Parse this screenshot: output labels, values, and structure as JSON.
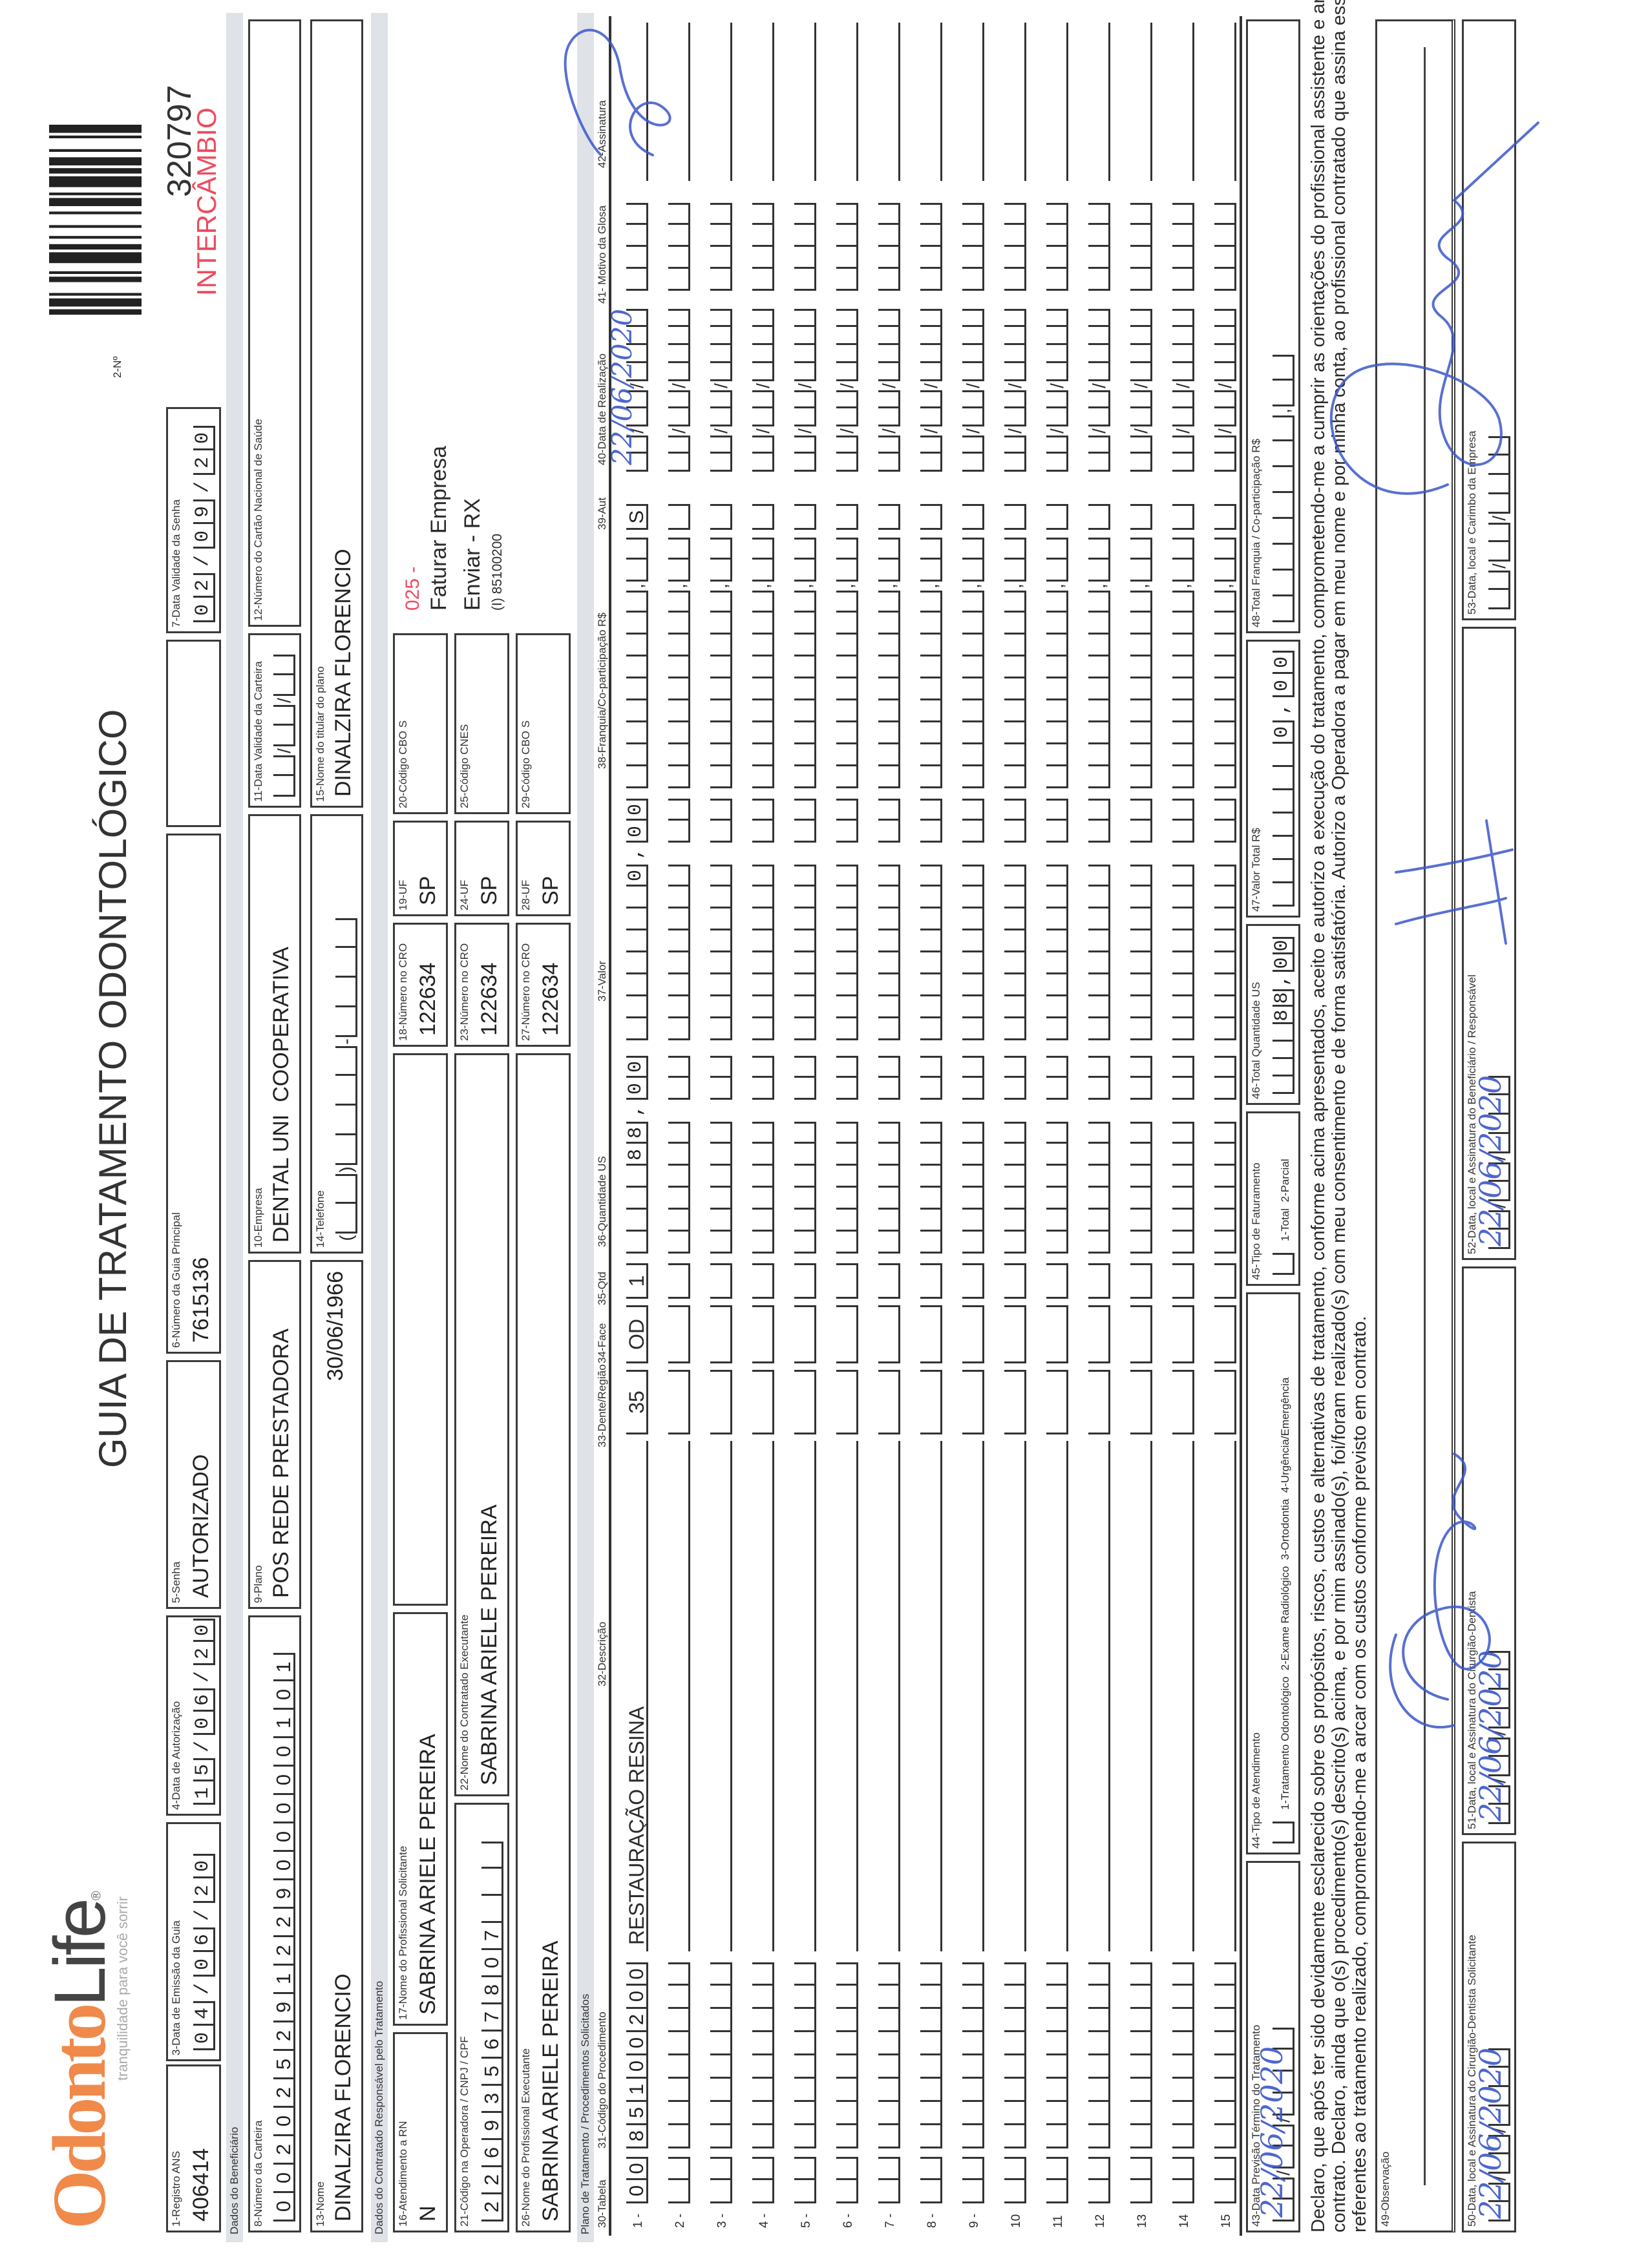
{
  "header": {
    "logo_text_1": "Odonto",
    "logo_text_2": "Life",
    "logo_tagline": "tranquilidade para você sorrir",
    "title": "GUIA DE TRATAMENTO ODONTOLÓGICO",
    "numero_label": "2-Nº",
    "numero": "320797",
    "intercambio": "INTERCÂMBIO"
  },
  "colors": {
    "logo_orange": "#f08a4b",
    "intercambio_red": "#ee4b5d",
    "ink_blue": "#3b57c9",
    "band_grey": "#dfe3e8"
  },
  "sections": {
    "beneficiario": "Dados do Beneficiário",
    "contratado": "Dados do Contratado Responsável pelo Tratamento",
    "plano": "Plano de Tratamento / Procedimentos Solicitados"
  },
  "fields": {
    "f1": {
      "label": "1-Registro ANS",
      "value": "406414"
    },
    "f3": {
      "label": "3-Data de Emissão da Guia",
      "value": "04/06/20"
    },
    "f4": {
      "label": "4-Data de Autorização",
      "value": "15/06/20"
    },
    "f5": {
      "label": "5-Senha",
      "value": "AUTORIZADO"
    },
    "f6": {
      "label": "6-Número da Guia Principal",
      "value": "7615136"
    },
    "f7": {
      "label": "7-Data Validade da Senha",
      "value": "02/09/20"
    },
    "f8": {
      "label": "8-Número da Carteira",
      "value": "00202529122900000101"
    },
    "f9": {
      "label": "9-Plano",
      "value": "POS REDE PRESTADORA"
    },
    "f10": {
      "label": "10-Empresa",
      "value": "DENTAL UNI  COOPERATIVA"
    },
    "f11": {
      "label": "11-Data Validade da Carteira"
    },
    "f12": {
      "label": "12-Número do Cartão Nacional de Saúde"
    },
    "f13": {
      "label": "13-Nome",
      "value": "DINALZIRA FLORENCIO",
      "birth_date": "30/06/1966"
    },
    "f14": {
      "label": "14-Telefone"
    },
    "f15": {
      "label": "15-Nome do titular do plano",
      "value": "DINALZIRA FLORENCIO"
    },
    "f16": {
      "label": "16-Atendimento a RN",
      "value": "N"
    },
    "f17": {
      "label": "17-Nome do Profissional Solicitante",
      "value": "SABRINA ARIELE PEREIRA"
    },
    "f18": {
      "label": "18-Número no CRO",
      "value": "122634"
    },
    "f19": {
      "label": "19-UF",
      "value": "SP"
    },
    "f20": {
      "label": "20-Código CBO S"
    },
    "f21": {
      "label": "21-Código na Operadora / CNPJ / CPF",
      "value": "22693567807"
    },
    "f22": {
      "label": "22-Nome do Contratado Executante",
      "value": "SABRINA ARIELE PEREIRA"
    },
    "f23": {
      "label": "23-Número no CRO",
      "value": "122634"
    },
    "f24": {
      "label": "24-UF",
      "value": "SP"
    },
    "f25": {
      "label": "25-Código CNES"
    },
    "f26": {
      "label": "26-Nome do Profissional Executante",
      "value": "SABRINA ARIELE PEREIRA"
    },
    "f27": {
      "label": "27-Número no CRO",
      "value": "122634"
    },
    "f28": {
      "label": "28-UF",
      "value": "SP"
    },
    "f29": {
      "label": "29-Código CBO S"
    }
  },
  "notes": {
    "code": "025 -",
    "line1": "Faturar Empresa",
    "line2": "Enviar - RX",
    "line3": "(I) 85100200"
  },
  "table": {
    "headers": {
      "tabela": "30-Tabela",
      "codigo": "31-Código do Procedimento",
      "descricao": "32-Descrição",
      "dente": "33-Dente/Região",
      "face": "34-Face",
      "qtd": "35-Qtd",
      "qtd_us": "36-Quantidade US",
      "valor": "37-Valor",
      "franquia": "38-Franquia/Co-participação R$",
      "aut": "39-Aut",
      "data": "40-Data de Realização",
      "glosa": "41- Motivo da Glosa",
      "assinatura": "42-Assinatura"
    },
    "rows": [
      {
        "num": "1 -",
        "tabela": "00",
        "codigo": "85100200",
        "descricao": "RESTAURAÇÃO RESINA",
        "dente": "35",
        "face": "OD",
        "qtd": "1",
        "qtd_us": "88,00",
        "valor": "0,00",
        "aut": "S",
        "data_realizacao": "22/06/2020"
      },
      {
        "num": "2 -"
      },
      {
        "num": "3 -"
      },
      {
        "num": "4 -"
      },
      {
        "num": "5 -"
      },
      {
        "num": "6 -"
      },
      {
        "num": "7 -"
      },
      {
        "num": "8 -"
      },
      {
        "num": "9 -"
      },
      {
        "num": "10"
      },
      {
        "num": "11"
      },
      {
        "num": "12"
      },
      {
        "num": "13"
      },
      {
        "num": "14"
      },
      {
        "num": "15"
      }
    ]
  },
  "footer": {
    "f43": {
      "label": "43-Data Previsão Término do Tratamento",
      "handwritten": "22/06/2020"
    },
    "f44": {
      "label": "44-Tipo de Atendimento",
      "options": "1-Tratamento Odontológico  2-Exame Radiológico  3-Ortodontia  4-Urgência/Emergência"
    },
    "f45": {
      "label": "45-Tipo de Faturamento",
      "options": "1-Total  2-Parcial"
    },
    "f46": {
      "label": "46-Total Quantidade US",
      "value": "88,00"
    },
    "f47": {
      "label": "47-Valor Total R$",
      "value": "0,00"
    },
    "f48": {
      "label": "48-Total Franquia / Co-participação R$"
    },
    "declaration": [
      "Declaro, que após ter sido devidamente esclarecido sobre os propósitos, riscos, custos e alternativas de tratamento, conforme acima apresentados, aceito e autorizo a execução do tratamento, comprometendo-me a cumprir as orientações do profissional assistente e arcar com os custos previstos em",
      "contrato. Declaro, ainda que o(s) procedimento(s) descrito(s) acima, e por mim assinado(s), foi/foram realizado(s) com meu consentimento e de forma satisfatória. Autorizo a Operadora a pagar em meu nome e por minha conta, ao profissional contratado que assina esse documento, os valores",
      "referentes ao tratamento realizado, comprometendo-me a arcar com os custos conforme previsto em contrato."
    ],
    "f49": {
      "label": "49-Observação"
    },
    "f50": {
      "label": "50-Data, local e Assinatura do Cirurgião-Dentista Solicitante",
      "handwritten": "22/06/2020"
    },
    "f51": {
      "label": "51-Data, local e Assinatura do Cirurgião-Dentista",
      "handwritten": "22/06/2020"
    },
    "f52": {
      "label": "52-Data, local e Assinatura do Beneficiário / Responsável",
      "handwritten": "22/06/2020"
    },
    "f53": {
      "label": "53-Data, local e Carimbo da Empresa"
    }
  }
}
